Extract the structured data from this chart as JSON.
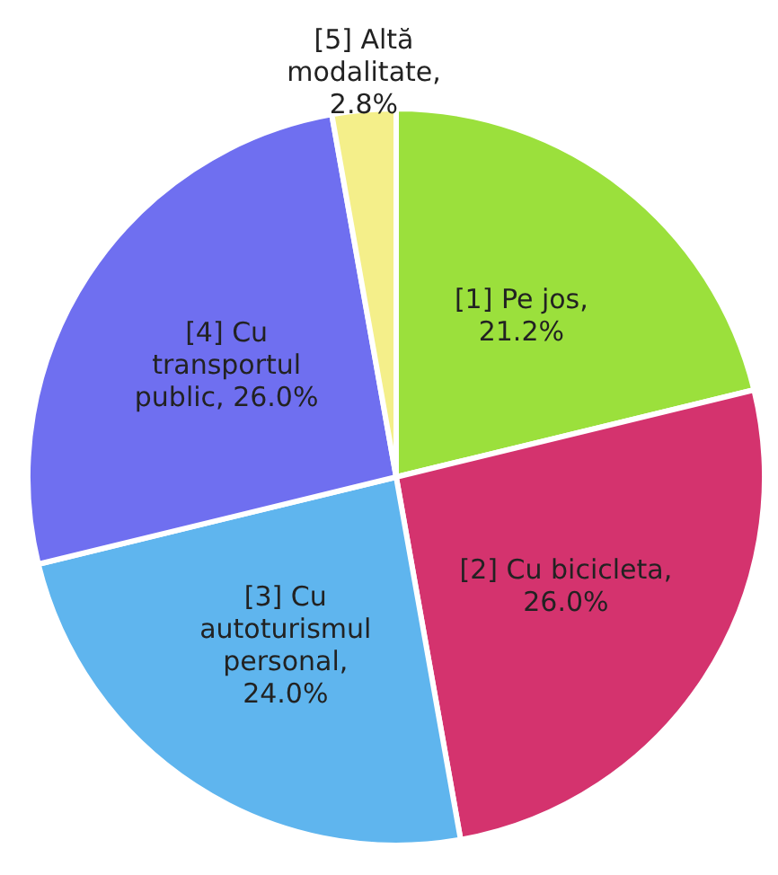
{
  "chart_data": {
    "type": "pie",
    "categories": [
      "[1] Pe jos",
      "[2] Cu bicicleta",
      "[3] Cu autoturismul personal",
      "[4] Cu transportul public",
      "[5] Altă modalitate"
    ],
    "values": [
      21.2,
      26.0,
      24.0,
      26.0,
      2.8
    ],
    "value_labels": [
      ", 21.2%",
      ", 26.0%",
      ", 24.0%",
      ", 26.0%",
      ", 2.8%"
    ],
    "colors": [
      "#9be03c",
      "#d4336e",
      "#5fb5ee",
      "#6f6ff0",
      "#f4ef8a"
    ],
    "legend": false
  }
}
